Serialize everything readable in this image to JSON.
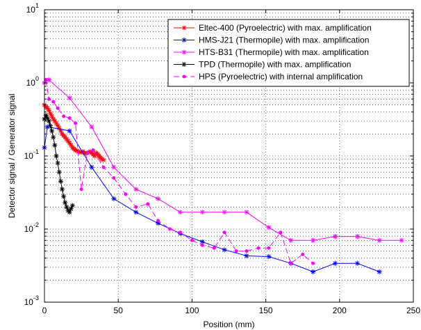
{
  "chart_data": {
    "type": "line",
    "title": "",
    "xlabel": "Position (mm)",
    "ylabel": "Detector signal / Generator signal",
    "xlim": [
      0,
      250
    ],
    "ylim": [
      0.001,
      10
    ],
    "yscale": "log",
    "grid": true,
    "legend_position": "top-right",
    "x_ticks": [
      {
        "v": 0,
        "label": "0"
      },
      {
        "v": 50,
        "label": "50"
      },
      {
        "v": 100,
        "label": "100"
      },
      {
        "v": 150,
        "label": "150"
      },
      {
        "v": 200,
        "label": "200"
      },
      {
        "v": 250,
        "label": "250"
      }
    ],
    "y_ticks": [
      {
        "v": 0.001,
        "base": "10",
        "exp": "-3"
      },
      {
        "v": 0.01,
        "base": "10",
        "exp": "-2"
      },
      {
        "v": 0.1,
        "base": "10",
        "exp": "-1"
      },
      {
        "v": 1,
        "base": "10",
        "exp": "0"
      },
      {
        "v": 10,
        "base": "10",
        "exp": "1"
      }
    ],
    "series": [
      {
        "name": "Eltec-400 (Pyroelectric) with max. amplification",
        "color": "#ff0000",
        "marker": "star",
        "dash": "",
        "x": [
          0,
          1,
          2,
          3,
          4,
          5,
          6,
          7,
          8,
          9,
          10,
          11,
          12,
          13,
          14,
          15,
          16,
          17,
          18,
          19,
          20,
          21,
          22,
          23,
          24,
          25,
          26,
          27,
          28,
          29,
          30,
          31,
          32,
          33,
          34,
          35,
          36,
          37,
          38,
          39,
          40
        ],
        "y": [
          0.5,
          0.47,
          0.45,
          0.42,
          0.38,
          0.35,
          0.32,
          0.3,
          0.28,
          0.26,
          0.24,
          0.22,
          0.2,
          0.19,
          0.18,
          0.17,
          0.16,
          0.15,
          0.14,
          0.13,
          0.125,
          0.12,
          0.118,
          0.115,
          0.113,
          0.112,
          0.115,
          0.11,
          0.108,
          0.11,
          0.112,
          0.115,
          0.11,
          0.105,
          0.1,
          0.11,
          0.105,
          0.1,
          0.095,
          0.09,
          0.088
        ]
      },
      {
        "name": "HMS-J21 (Thermopile) with max. amplification",
        "color": "#0000ff",
        "marker": "star",
        "dash": "",
        "x": [
          0,
          2,
          17,
          32,
          47,
          62,
          77,
          92,
          107,
          122,
          137,
          152,
          167,
          182,
          197,
          212,
          227
        ],
        "y": [
          0.13,
          0.25,
          0.22,
          0.07,
          0.026,
          0.017,
          0.012,
          0.0087,
          0.0067,
          0.0052,
          0.0043,
          0.0042,
          0.0034,
          0.0026,
          0.0034,
          0.0034,
          0.0026
        ]
      },
      {
        "name": "HTS-B31 (Thermopile) with max. amplification",
        "color": "#ff00ff",
        "marker": "star",
        "dash": "",
        "x": [
          0,
          3,
          17,
          32,
          47,
          62,
          77,
          92,
          107,
          122,
          137,
          152,
          167,
          182,
          197,
          212,
          227,
          242
        ],
        "y": [
          1.0,
          1.1,
          0.62,
          0.25,
          0.07,
          0.035,
          0.026,
          0.017,
          0.017,
          0.017,
          0.017,
          0.0105,
          0.007,
          0.007,
          0.0079,
          0.0079,
          0.007,
          0.007
        ]
      },
      {
        "name": "TPD (Thermopile) with max. amplification",
        "color": "#000000",
        "marker": "star",
        "dash": "",
        "x": [
          0,
          1,
          2,
          3,
          4,
          5,
          6,
          7,
          8,
          9,
          10,
          11,
          12,
          13,
          14,
          15,
          16,
          17,
          18,
          19
        ],
        "y": [
          0.32,
          0.36,
          0.33,
          0.3,
          0.26,
          0.22,
          0.18,
          0.14,
          0.1,
          0.08,
          0.06,
          0.045,
          0.035,
          0.028,
          0.023,
          0.02,
          0.018,
          0.017,
          0.019,
          0.021
        ]
      },
      {
        "name": "HPS (Pyroelectric) with internal amplification",
        "color": "#ff00ff",
        "marker": "dot",
        "dash": "8,4",
        "x": [
          1,
          3,
          6,
          9,
          13,
          17,
          21,
          25,
          29,
          33,
          40,
          47,
          55,
          62,
          70,
          77,
          85,
          92,
          100,
          107,
          115,
          122,
          130,
          137,
          145,
          152,
          160,
          167,
          175,
          182
        ],
        "y": [
          1.1,
          0.6,
          0.55,
          0.45,
          0.35,
          0.33,
          0.28,
          0.035,
          0.11,
          0.12,
          0.07,
          0.05,
          0.03,
          0.02,
          0.022,
          0.013,
          0.01,
          0.009,
          0.007,
          0.006,
          0.0055,
          0.009,
          0.005,
          0.005,
          0.0055,
          0.0055,
          0.009,
          0.0034,
          0.0045,
          0.0034
        ]
      }
    ]
  }
}
